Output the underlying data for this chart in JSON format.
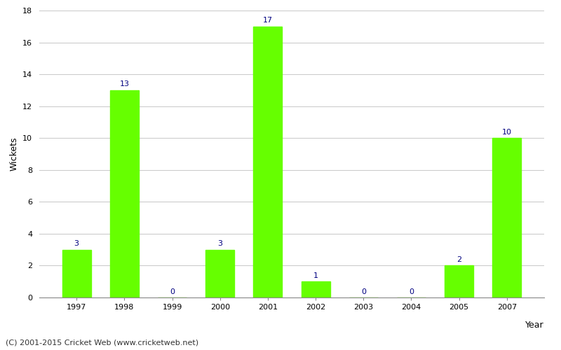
{
  "categories": [
    "1997",
    "1998",
    "1999",
    "2000",
    "2001",
    "2002",
    "2003",
    "2004",
    "2005",
    "2007"
  ],
  "values": [
    3,
    13,
    0,
    3,
    17,
    1,
    0,
    0,
    2,
    10
  ],
  "bar_color": "#66ff00",
  "bar_edge_color": "#66ff00",
  "xlabel": "Year",
  "ylabel": "Wickets",
  "ylim": [
    0,
    18
  ],
  "yticks": [
    0,
    2,
    4,
    6,
    8,
    10,
    12,
    14,
    16,
    18
  ],
  "label_color": "#000080",
  "label_fontsize": 8,
  "axis_label_fontsize": 9,
  "tick_fontsize": 8,
  "footnote": "(C) 2001-2015 Cricket Web (www.cricketweb.net)",
  "footnote_fontsize": 8,
  "background_color": "#ffffff",
  "grid_color": "#cccccc"
}
